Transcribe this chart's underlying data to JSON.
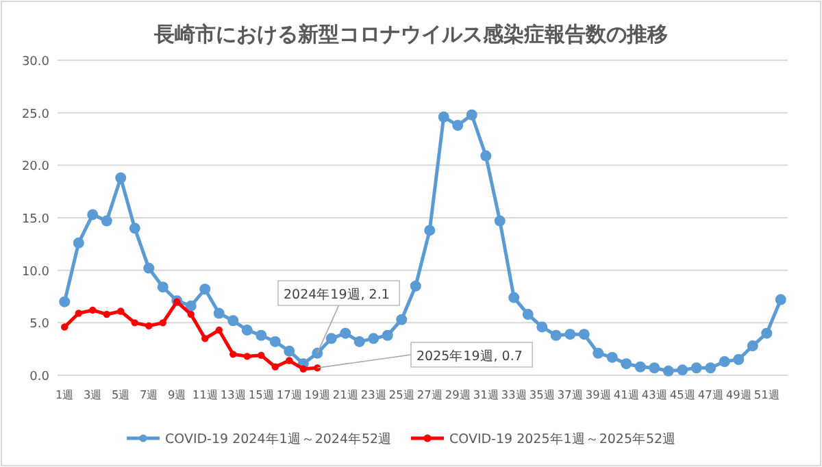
{
  "chart_data": {
    "type": "line",
    "title": "長崎市における新型コロナウイルス感染症報告数の推移",
    "categories": [
      "1週",
      null,
      "3週",
      null,
      "5週",
      null,
      "7週",
      null,
      "9週",
      null,
      "11週",
      null,
      "13週",
      null,
      "15週",
      null,
      "17週",
      null,
      "19週",
      null,
      "21週",
      null,
      "23週",
      null,
      "25週",
      null,
      "27週",
      null,
      "29週",
      null,
      "31週",
      null,
      "33週",
      null,
      "35週",
      null,
      "37週",
      null,
      "39週",
      null,
      "41週",
      null,
      "43週",
      null,
      "45週",
      null,
      "47週",
      null,
      "49週",
      null,
      "51週",
      null
    ],
    "series": [
      {
        "name": "COVID-19 2024年1週～2024年52週",
        "color": "#5b9bd5",
        "values": [
          7.0,
          12.6,
          15.3,
          14.7,
          18.8,
          14.0,
          10.2,
          8.4,
          7.1,
          6.6,
          8.2,
          5.9,
          5.2,
          4.3,
          3.8,
          3.2,
          2.3,
          1.1,
          2.1,
          3.5,
          4.0,
          3.2,
          3.5,
          3.8,
          5.3,
          8.5,
          13.8,
          24.6,
          23.8,
          24.8,
          20.9,
          14.7,
          7.4,
          5.8,
          4.6,
          3.8,
          3.9,
          3.9,
          2.1,
          1.7,
          1.1,
          0.8,
          0.7,
          0.4,
          0.5,
          0.7,
          0.7,
          1.3,
          1.5,
          2.8,
          4.0,
          7.2
        ]
      },
      {
        "name": "COVID-19 2025年1週～2025年52週",
        "color": "#ff0000",
        "values": [
          4.6,
          5.9,
          6.2,
          5.8,
          6.1,
          5.0,
          4.7,
          5.0,
          7.0,
          5.8,
          3.5,
          4.3,
          2.0,
          1.8,
          1.9,
          0.8,
          1.4,
          0.6,
          0.7,
          null,
          null,
          null,
          null,
          null,
          null,
          null,
          null,
          null,
          null,
          null,
          null,
          null,
          null,
          null,
          null,
          null,
          null,
          null,
          null,
          null,
          null,
          null,
          null,
          null,
          null,
          null,
          null,
          null,
          null,
          null,
          null,
          null
        ]
      }
    ],
    "ylim": [
      0,
      30
    ],
    "yticks": [
      {
        "value": 0,
        "label": "0.0"
      },
      {
        "value": 5,
        "label": "5.0"
      },
      {
        "value": 10,
        "label": "10.0"
      },
      {
        "value": 15,
        "label": "15.0"
      },
      {
        "value": 20,
        "label": "20.0"
      },
      {
        "value": 25,
        "label": "25.0"
      },
      {
        "value": 30,
        "label": "30.0"
      }
    ],
    "grid": "y",
    "legend": "bottom",
    "marker": "circle",
    "line_style": "solid",
    "annotations": [
      {
        "text": "2024年19週, 2.1",
        "x": "19週",
        "y": 2.1
      },
      {
        "text": "2025年19週, 0.7",
        "x": "19週",
        "y": 0.7
      }
    ]
  }
}
